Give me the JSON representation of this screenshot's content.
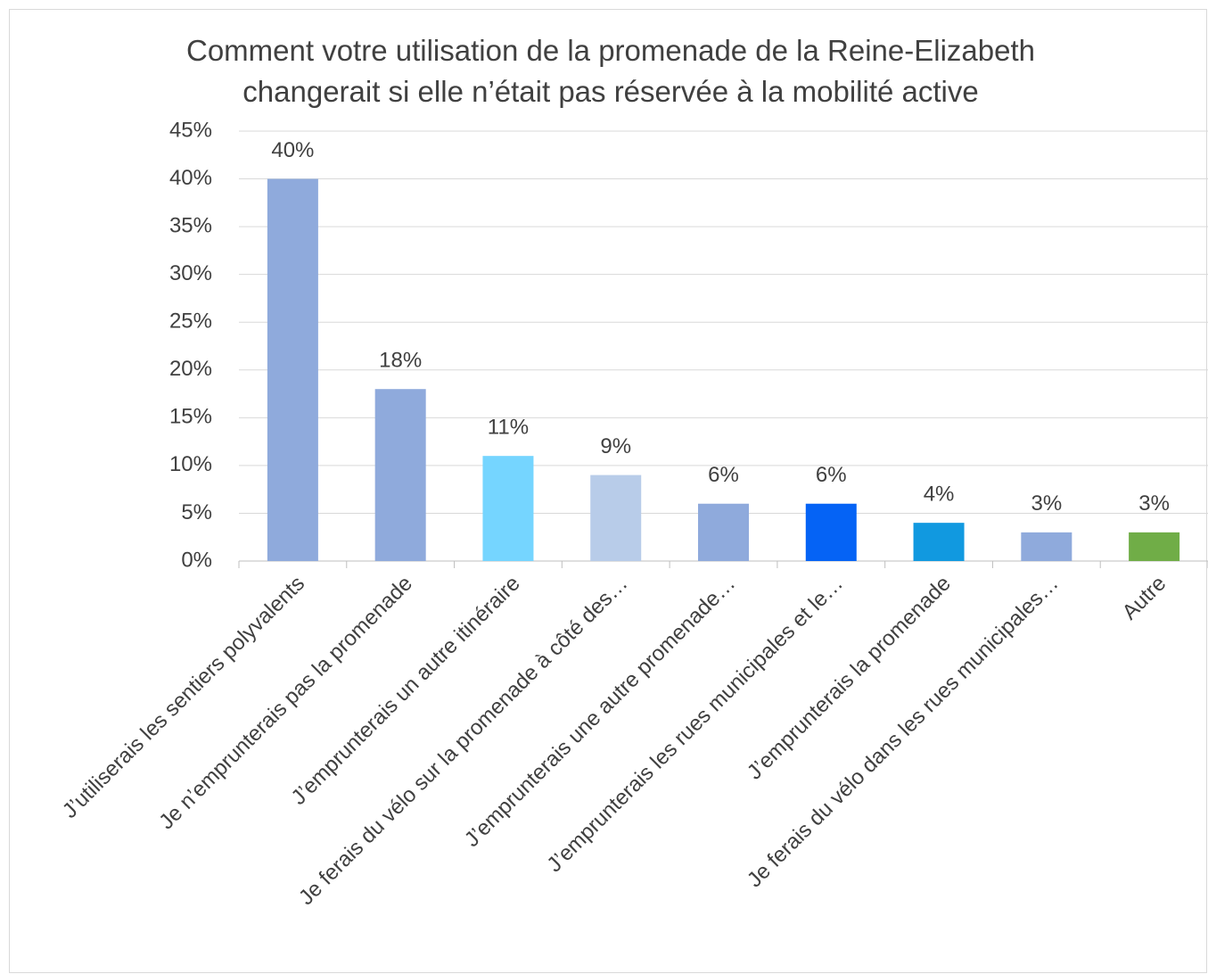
{
  "chart_data": {
    "type": "bar",
    "title": "Comment votre utilisation de la promenade de la Reine-Elizabeth changerait si elle n’était pas réservée à la mobilité active",
    "categories": [
      "J’utiliserais les sentiers polyvalents",
      "Je n’emprunterais pas la promenade",
      "J’emprunterais un autre itinéraire",
      "Je ferais du vélo sur la promenade à côté des…",
      "J’emprunterais une autre promenade…",
      "J’emprunterais les rues municipales et le…",
      "J’emprunterais la promenade",
      "Je ferais du vélo dans les rues municipales…",
      "Autre"
    ],
    "values": [
      40,
      18,
      11,
      9,
      6,
      6,
      4,
      3,
      3
    ],
    "value_labels": [
      "40%",
      "18%",
      "11%",
      "9%",
      "6%",
      "6%",
      "4%",
      "3%",
      "3%"
    ],
    "colors": [
      "#8faadc",
      "#8faadc",
      "#75d5ff",
      "#b8cce9",
      "#8faadc",
      "#0563f5",
      "#1199e0",
      "#8faadc",
      "#70ad47"
    ],
    "ylim": [
      0,
      45
    ],
    "yticks": [
      {
        "value": 0,
        "label": "0%"
      },
      {
        "value": 5,
        "label": "5%"
      },
      {
        "value": 10,
        "label": "10%"
      },
      {
        "value": 15,
        "label": "15%"
      },
      {
        "value": 20,
        "label": "20%"
      },
      {
        "value": 25,
        "label": "25%"
      },
      {
        "value": 30,
        "label": "30%"
      },
      {
        "value": 35,
        "label": "35%"
      },
      {
        "value": 40,
        "label": "40%"
      },
      {
        "value": 45,
        "label": "45%"
      }
    ],
    "grid": true
  }
}
